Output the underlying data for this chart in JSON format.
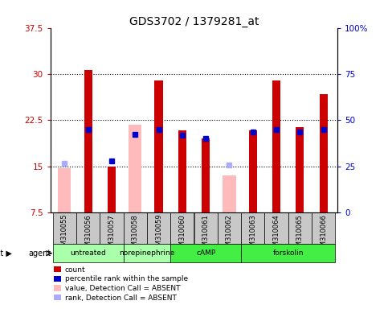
{
  "title": "GDS3702 / 1379281_at",
  "samples": [
    "GSM310055",
    "GSM310056",
    "GSM310057",
    "GSM310058",
    "GSM310059",
    "GSM310060",
    "GSM310061",
    "GSM310062",
    "GSM310063",
    "GSM310064",
    "GSM310065",
    "GSM310066"
  ],
  "groups_data": [
    {
      "name": "untreated",
      "start": 0,
      "end": 2,
      "color": "#aaffaa"
    },
    {
      "name": "norepinephrine",
      "start": 3,
      "end": 4,
      "color": "#aaffaa"
    },
    {
      "name": "cAMP",
      "start": 5,
      "end": 7,
      "color": "#44ee44"
    },
    {
      "name": "forskolin",
      "start": 8,
      "end": 11,
      "color": "#44ee44"
    }
  ],
  "red_bars": [
    null,
    30.7,
    14.9,
    null,
    28.9,
    20.8,
    19.5,
    null,
    20.8,
    28.9,
    21.3,
    26.7
  ],
  "pink_bars": [
    14.7,
    null,
    null,
    21.8,
    null,
    null,
    null,
    13.5,
    null,
    null,
    null,
    null
  ],
  "blue_markers": [
    null,
    21.0,
    15.9,
    20.2,
    21.0,
    20.0,
    19.5,
    null,
    20.5,
    21.0,
    20.5,
    21.0
  ],
  "light_blue_markers": [
    15.5,
    null,
    null,
    null,
    null,
    null,
    null,
    15.2,
    null,
    null,
    null,
    null
  ],
  "ylim_left": [
    7.5,
    37.5
  ],
  "ylim_right": [
    0,
    100
  ],
  "yticks_left": [
    7.5,
    15.0,
    22.5,
    30.0,
    37.5
  ],
  "ytick_labels_left": [
    "7.5",
    "15",
    "22.5",
    "30",
    "37.5"
  ],
  "yticks_right": [
    0,
    25,
    50,
    75,
    100
  ],
  "ytick_labels_right": [
    "0",
    "25",
    "50",
    "75",
    "100%"
  ],
  "title_fontsize": 10,
  "red_bar_width": 0.35,
  "pink_bar_width": 0.55,
  "legend_items": [
    {
      "label": "count",
      "color": "#cc0000"
    },
    {
      "label": "percentile rank within the sample",
      "color": "#0000cc"
    },
    {
      "label": "value, Detection Call = ABSENT",
      "color": "#ffbbbb"
    },
    {
      "label": "rank, Detection Call = ABSENT",
      "color": "#aaaaff"
    }
  ]
}
